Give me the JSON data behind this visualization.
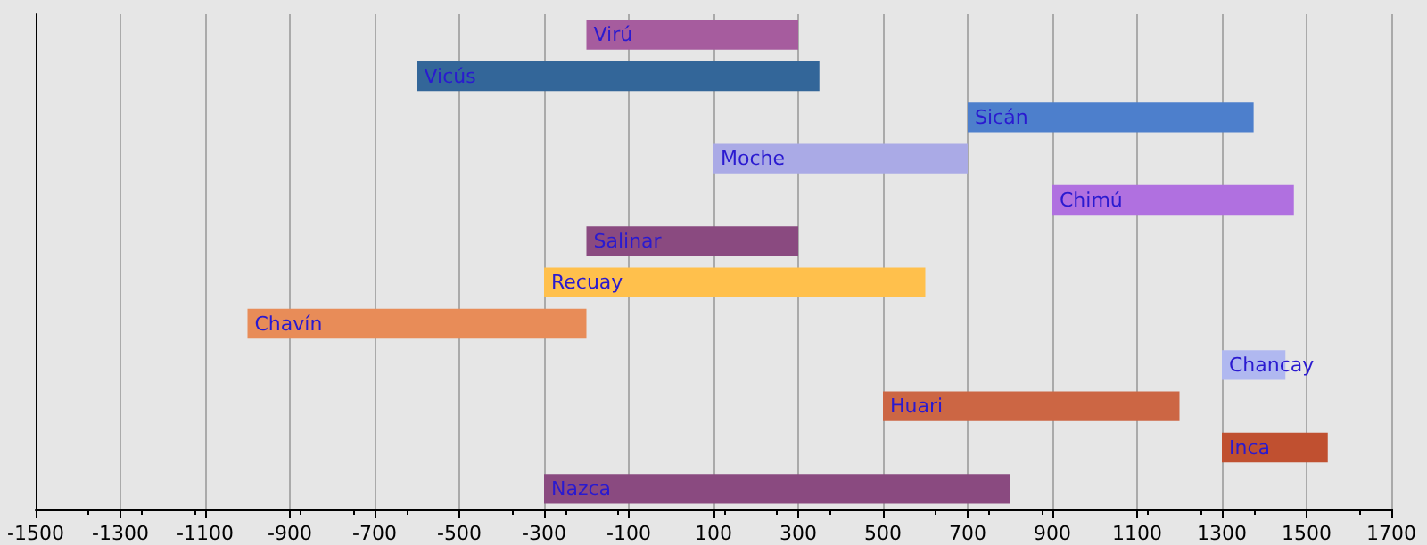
{
  "chart_data": {
    "type": "bar",
    "orientation": "horizontal",
    "categories": [
      "Virú",
      "Vicús",
      "Sicán",
      "Moche",
      "Chimú",
      "Salinar",
      "Recuay",
      "Chavín",
      "Chancay",
      "Huari",
      "Inca",
      "Nazca"
    ],
    "base": [
      -200,
      -600,
      700,
      100,
      900,
      -200,
      -300,
      -1000,
      1300,
      500,
      1300,
      -300
    ],
    "values": [
      500,
      950,
      675,
      600,
      570,
      500,
      900,
      800,
      150,
      700,
      250,
      1100
    ],
    "colors": [
      "#a65c9e",
      "#336699",
      "#4d7fcc",
      "#aaaae6",
      "#b070e0",
      "#8a4a80",
      "#ffc04c",
      "#e88c58",
      "#b0b8f0",
      "#cc6644",
      "#c05030",
      "#8a4a80"
    ],
    "xlim": [
      -1500,
      1700
    ],
    "xticks": [
      -1500,
      -1300,
      -1100,
      -900,
      -700,
      -500,
      -300,
      -100,
      100,
      300,
      500,
      700,
      900,
      1100,
      1300,
      1500,
      1700
    ],
    "grid": "x",
    "tick_labels": "x"
  }
}
